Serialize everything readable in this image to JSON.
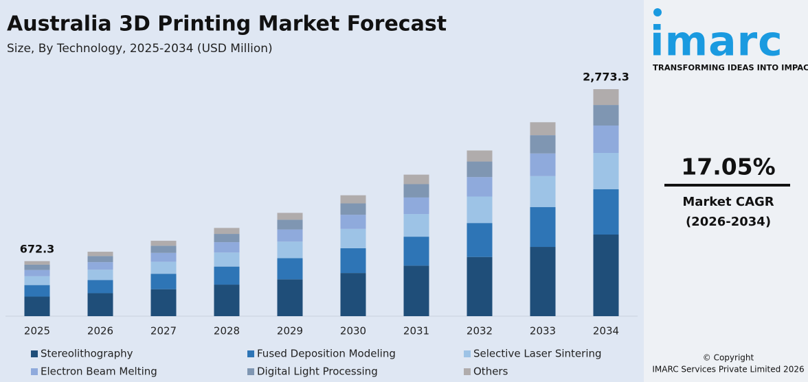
{
  "chart_data": {
    "type": "stacked_bar",
    "title": "Australia 3D Printing Market Forecast",
    "subtitle": "Size, By Technology, 2025-2034 (USD Million)",
    "categories": [
      "2025",
      "2026",
      "2027",
      "2028",
      "2029",
      "2030",
      "2031",
      "2032",
      "2033",
      "2034"
    ],
    "series": [
      {
        "name": "Stereolithography",
        "color": "#1f4e79",
        "values": [
          239,
          281,
          329,
          385,
          450,
          527,
          617,
          723,
          846,
          997
        ]
      },
      {
        "name": "Fused Deposition Modeling",
        "color": "#2e75b6",
        "values": [
          141,
          161,
          189,
          221,
          259,
          303,
          354,
          415,
          486,
          553
        ]
      },
      {
        "name": "Selective Laser Sintering",
        "color": "#9dc3e6",
        "values": [
          108,
          126,
          147,
          172,
          202,
          236,
          277,
          324,
          379,
          444
        ]
      },
      {
        "name": "Electron Beam Melting",
        "color": "#8faadc",
        "values": [
          76,
          92,
          108,
          126,
          148,
          173,
          202,
          237,
          277,
          335
        ]
      },
      {
        "name": "Digital Light Processing",
        "color": "#7f96b2",
        "values": [
          65,
          74,
          87,
          101,
          119,
          139,
          163,
          190,
          223,
          251
        ]
      },
      {
        "name": "Others",
        "color": "#b0acac",
        "values": [
          43.3,
          53,
          61,
          73,
          84,
          99,
          116,
          135,
          158,
          193.3
        ]
      }
    ],
    "annotations": [
      {
        "x": "2025",
        "text": "672.3"
      },
      {
        "x": "2034",
        "text": "2,773.3"
      }
    ]
  },
  "side_panel": {
    "logo": "imarc",
    "tagline": "TRANSFORMING IDEAS INTO IMPACT",
    "cagr": "17.05%",
    "cagr_label": "Market CAGR",
    "cagr_period": "(2026-2034)",
    "copyright": "© Copyright",
    "company": "IMARC Services Private Limited 2026"
  }
}
